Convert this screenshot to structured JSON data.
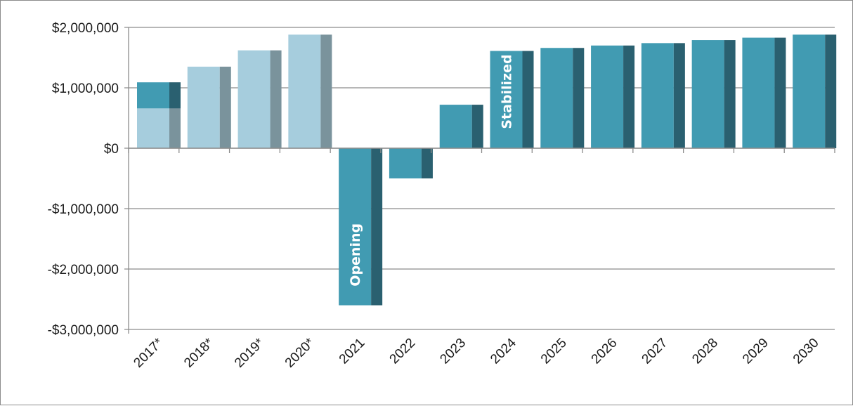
{
  "chart_data": {
    "type": "bar",
    "title": "",
    "xlabel": "",
    "ylabel": "",
    "categories": [
      "2017*",
      "2018*",
      "2019*",
      "2020*",
      "2021",
      "2022",
      "2023",
      "2024",
      "2025",
      "2026",
      "2027",
      "2028",
      "2029",
      "2030"
    ],
    "values": [
      1090000,
      1350000,
      1620000,
      1880000,
      -2600000,
      -500000,
      720000,
      1610000,
      1660000,
      1700000,
      1740000,
      1790000,
      1830000,
      1880000
    ],
    "overlay_segment": {
      "category": "2017*",
      "from": 660000,
      "to": 1090000
    },
    "ylim": [
      -3000000,
      2000000
    ],
    "y_ticks": [
      2000000,
      1000000,
      0,
      -1000000,
      -2000000,
      -3000000
    ],
    "y_tick_labels": [
      "$2,000,000",
      "$1,000,000",
      "$0",
      "-$1,000,000",
      "-$2,000,000",
      "-$3,000,000"
    ],
    "grid": true,
    "legend": "none",
    "annotations": [
      {
        "text": "Opening",
        "category": "2021"
      },
      {
        "text": "Stabilized",
        "category": "2024"
      }
    ],
    "colors": {
      "historical_face": "#a6cddd",
      "historical_side": "#7a939c",
      "projected_face": "#419bb2",
      "projected_side": "#2a6070",
      "gridline": "#8c8c8c",
      "axis": "#8c8c8c"
    },
    "historical_count": 4
  }
}
